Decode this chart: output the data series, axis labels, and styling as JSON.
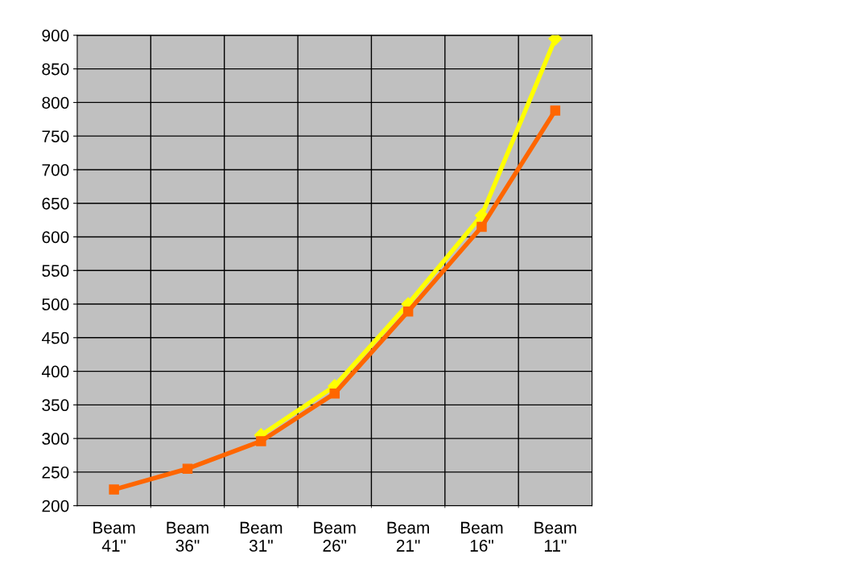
{
  "chart_data": {
    "type": "line",
    "categories": [
      "Beam\n41\"",
      "Beam\n36\"",
      "Beam\n31\"",
      "Beam\n26\"",
      "Beam\n21\"",
      "Beam\n16\"",
      "Beam\n11\""
    ],
    "series": [
      {
        "color": "#ffff00",
        "marker": "diamond",
        "values": [
          null,
          null,
          305,
          378,
          500,
          632,
          895
        ]
      },
      {
        "color": "#ff6600",
        "marker": "square",
        "values": [
          224,
          255,
          296,
          367,
          489,
          615,
          788
        ]
      }
    ],
    "ylim": [
      200,
      900
    ],
    "yticks": [
      200,
      250,
      300,
      350,
      400,
      450,
      500,
      550,
      600,
      650,
      700,
      750,
      800,
      850,
      900
    ],
    "grid": true,
    "legend": false
  }
}
